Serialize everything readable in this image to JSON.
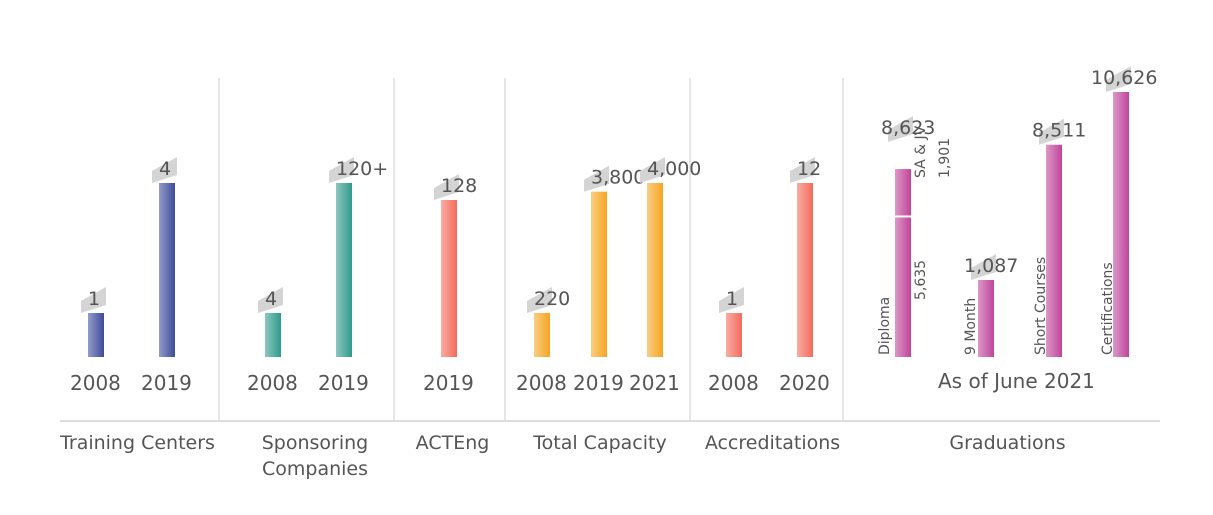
{
  "chart_data": {
    "type": "bar",
    "groups": [
      {
        "name": "Training Centers",
        "color": "#3d4b9b",
        "bars": [
          {
            "year": "2008",
            "value": 1,
            "label": "1"
          },
          {
            "year": "2019",
            "value": 4,
            "label": "4"
          }
        ]
      },
      {
        "name": "Sponsoring\nCompanies",
        "color": "#2f9a8a",
        "bars": [
          {
            "year": "2008",
            "value": 4,
            "label": "4"
          },
          {
            "year": "2019",
            "value": 120,
            "label": "120+"
          }
        ]
      },
      {
        "name": "ACTEng",
        "color": "#f46a5a",
        "bars": [
          {
            "year": "2019",
            "value": 128,
            "label": "128"
          }
        ]
      },
      {
        "name": "Total Capacity",
        "color": "#f6a521",
        "bars": [
          {
            "year": "2008",
            "value": 220,
            "label": "220"
          },
          {
            "year": "2019",
            "value": 3800,
            "label": "3,800"
          },
          {
            "year": "2021",
            "value": 4000,
            "label": "4,000"
          }
        ]
      },
      {
        "name": "Accreditations",
        "color": "#f46a5a",
        "bars": [
          {
            "year": "2008",
            "value": 1,
            "label": "1"
          },
          {
            "year": "2020",
            "value": 12,
            "label": "12"
          }
        ]
      }
    ],
    "graduations": {
      "name": "Graduations",
      "note": "As of June 2021",
      "color": "#c0449a",
      "bars": [
        {
          "label": "8,623",
          "total": 8623,
          "segments": [
            {
              "name": "Diploma",
              "value": 5635,
              "value_label": "5,635"
            },
            {
              "name": "SA & JV",
              "value": 1901,
              "value_label": "1,901"
            }
          ]
        },
        {
          "label": "1,087",
          "total": 1087,
          "name": "9 Month"
        },
        {
          "label": "8,511",
          "total": 8511,
          "name": "Short Courses"
        },
        {
          "label": "10,626",
          "total": 10626,
          "name": "Certifications"
        }
      ]
    }
  }
}
